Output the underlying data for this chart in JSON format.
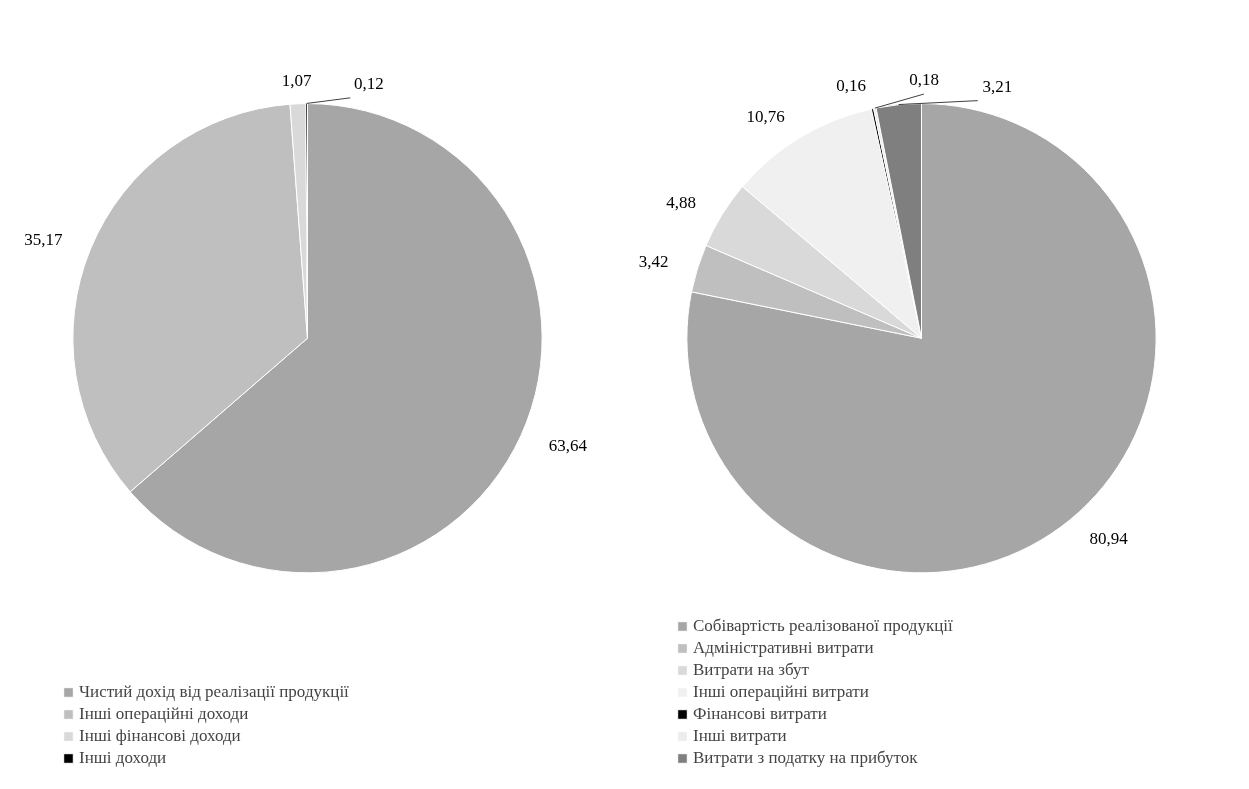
{
  "chart_data": [
    {
      "type": "pie",
      "categories": [
        "Чистий дохід від реалізації продукції",
        "Інші операційні доходи",
        "Інші фінансові доходи",
        "Інші доходи"
      ],
      "values": [
        63.64,
        35.17,
        1.07,
        0.12
      ],
      "colors": [
        "#a6a6a6",
        "#bfbfbf",
        "#d9d9d9",
        "#000000"
      ],
      "value_labels": [
        "63,64",
        "35,17",
        "1,07",
        "0,12"
      ],
      "legend": "bottom"
    },
    {
      "type": "pie",
      "categories": [
        "Собівартість реалізованої продукції",
        "Адміністративні витрати",
        "Витрати на збут",
        "Інші операційні витрати",
        "Фінансові витрати",
        "Інші витрати",
        "Витрати з податку на прибуток"
      ],
      "values": [
        80.94,
        3.42,
        4.88,
        10.76,
        0.16,
        0.18,
        3.21
      ],
      "colors": [
        "#a6a6a6",
        "#bfbfbf",
        "#d9d9d9",
        "#f0f0f0",
        "#000000",
        "#ececec",
        "#7f7f7f"
      ],
      "value_labels": [
        "80,94",
        "3,42",
        "4,88",
        "10,76",
        "0,16",
        "0,18",
        "3,21"
      ],
      "legend": "bottom"
    }
  ]
}
